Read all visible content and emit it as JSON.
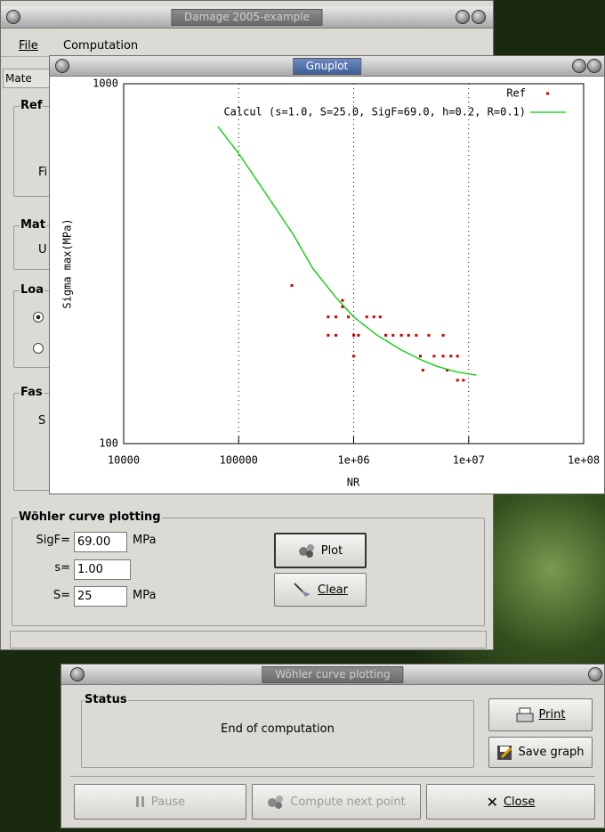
{
  "main_window": {
    "title": "Damage 2005-example",
    "menu": [
      "File",
      "Computation"
    ],
    "tab": "Mate",
    "fragments": [
      "Ref",
      "Fi",
      "Mat",
      "U",
      "Loa",
      "Fas",
      "S"
    ],
    "wohler_group": {
      "title": "Wöhler curve plotting",
      "fields": [
        {
          "label": "SigF=",
          "value": "69.00",
          "unit": "MPa"
        },
        {
          "label": "s=",
          "value": "1.00"
        },
        {
          "label": "S=",
          "value": "25",
          "unit": "MPa"
        }
      ],
      "buttons": [
        "Plot",
        "Clear"
      ]
    }
  },
  "gnuplot_window": {
    "title": "Gnuplot"
  },
  "chart_data": {
    "type": "line",
    "xlabel": "NR",
    "ylabel": "Sigma max(MPa)",
    "xscale": "log",
    "yscale": "log",
    "grid": true,
    "legend": "top-right",
    "xlim": [
      10000,
      100000000
    ],
    "ylim": [
      100,
      1000
    ],
    "xticks": [
      10000,
      100000,
      {
        "value": 1000000,
        "label": "1e+06"
      },
      {
        "value": 10000000,
        "label": "1e+07"
      },
      {
        "value": 100000000,
        "label": "1e+08"
      }
    ],
    "yticks": [
      100,
      1000
    ],
    "series": [
      {
        "name": "Ref",
        "mode": "points",
        "color": "#d00000",
        "x": [
          290000,
          600000,
          700000,
          800000,
          900000,
          1300000,
          1500000,
          1700000,
          1000000,
          600000,
          700000,
          1100000,
          1900000,
          2200000,
          2600000,
          3000000,
          3500000,
          4500000,
          6000000,
          8000000,
          3800000,
          5000000,
          6000000,
          7000000,
          4000000,
          6500000,
          8000000,
          9000000,
          1000000,
          800000
        ],
        "values": [
          275,
          225,
          225,
          240,
          225,
          225,
          225,
          225,
          200,
          200,
          200,
          200,
          200,
          200,
          200,
          200,
          200,
          200,
          200,
          175,
          175,
          175,
          175,
          175,
          160,
          160,
          150,
          150,
          175,
          250
        ]
      },
      {
        "name": "Calcul (s=1.0, S=25.0, SigF=69.0, h=0.2, R=0.1)",
        "mode": "line",
        "color": "#00cc00",
        "x": [
          66000,
          100000,
          180000,
          300000,
          440000,
          700000,
          1000000,
          1600000,
          2600000,
          4000000,
          5300000,
          8000000,
          11700000
        ],
        "values": [
          760,
          640,
          485,
          380,
          307,
          255,
          225,
          200,
          182,
          170,
          164,
          158,
          155
        ]
      }
    ]
  },
  "dialog": {
    "title": "Wöhler curve plotting",
    "status_title": "Status",
    "status_text": "End of computation",
    "side_buttons": [
      "Print",
      "Save graph"
    ],
    "buttons": [
      "Pause",
      "Compute next point",
      "Close"
    ]
  }
}
